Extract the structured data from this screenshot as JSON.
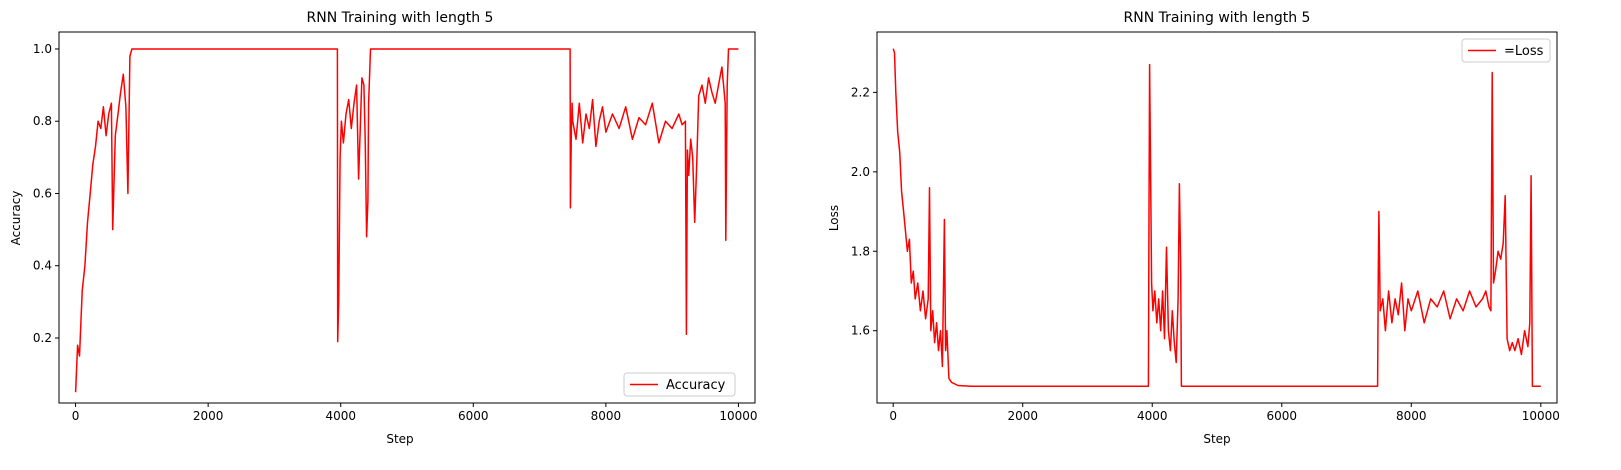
{
  "colors": {
    "series": "#ff0000",
    "axes": "#000000",
    "background": "#ffffff"
  },
  "chart_data": [
    {
      "type": "line",
      "title": "RNN Training with length 5",
      "xlabel": "Step",
      "ylabel": "Accuracy",
      "xlim": [
        -250,
        10250
      ],
      "ylim": [
        0.02,
        1.047
      ],
      "xticks": [
        0,
        2000,
        4000,
        6000,
        8000,
        10000
      ],
      "xtick_labels": [
        "0",
        "2000",
        "4000",
        "6000",
        "8000",
        "10000"
      ],
      "yticks": [
        0.2,
        0.4,
        0.6,
        0.8,
        1.0
      ],
      "ytick_labels": [
        "0.2",
        "0.4",
        "0.6",
        "0.8",
        "1.0"
      ],
      "grid": false,
      "legend": {
        "location": "lower right",
        "entries": [
          "Accuracy"
        ]
      },
      "series": [
        {
          "name": "Accuracy",
          "color": "#ff0000",
          "x": [
            0,
            30,
            60,
            100,
            140,
            180,
            220,
            260,
            300,
            340,
            380,
            420,
            460,
            500,
            540,
            560,
            600,
            640,
            680,
            720,
            760,
            790,
            820,
            850,
            900,
            1000,
            2000,
            3000,
            3950,
            3955,
            3970,
            3990,
            4010,
            4040,
            4080,
            4120,
            4160,
            4200,
            4240,
            4270,
            4290,
            4320,
            4350,
            4370,
            4390,
            4410,
            4420,
            4440,
            4450,
            4500,
            5000,
            6000,
            7000,
            7460,
            7465,
            7480,
            7490,
            7500,
            7550,
            7600,
            7650,
            7700,
            7750,
            7800,
            7850,
            7900,
            7950,
            8000,
            8100,
            8200,
            8300,
            8400,
            8500,
            8600,
            8700,
            8800,
            8900,
            9000,
            9100,
            9150,
            9200,
            9215,
            9230,
            9250,
            9280,
            9310,
            9340,
            9370,
            9400,
            9450,
            9500,
            9550,
            9600,
            9650,
            9700,
            9750,
            9800,
            9810,
            9830,
            9850,
            9900,
            9950,
            10000
          ],
          "y": [
            0.05,
            0.18,
            0.15,
            0.33,
            0.4,
            0.52,
            0.6,
            0.68,
            0.73,
            0.8,
            0.78,
            0.84,
            0.76,
            0.82,
            0.85,
            0.5,
            0.76,
            0.82,
            0.88,
            0.93,
            0.84,
            0.6,
            0.98,
            1.0,
            1.0,
            1.0,
            1.0,
            1.0,
            1.0,
            0.19,
            0.3,
            0.7,
            0.8,
            0.74,
            0.82,
            0.86,
            0.78,
            0.85,
            0.9,
            0.64,
            0.75,
            0.92,
            0.9,
            0.75,
            0.48,
            0.58,
            0.85,
            0.95,
            1.0,
            1.0,
            1.0,
            1.0,
            1.0,
            1.0,
            0.56,
            0.78,
            0.85,
            0.8,
            0.75,
            0.85,
            0.74,
            0.82,
            0.78,
            0.86,
            0.73,
            0.8,
            0.84,
            0.77,
            0.82,
            0.78,
            0.84,
            0.75,
            0.81,
            0.79,
            0.85,
            0.74,
            0.8,
            0.78,
            0.82,
            0.79,
            0.8,
            0.21,
            0.72,
            0.65,
            0.75,
            0.7,
            0.52,
            0.68,
            0.87,
            0.9,
            0.85,
            0.92,
            0.88,
            0.85,
            0.9,
            0.95,
            0.85,
            0.47,
            0.9,
            1.0,
            1.0,
            1.0,
            1.0
          ]
        }
      ]
    },
    {
      "type": "line",
      "title": "RNN Training with length 5",
      "xlabel": "Step",
      "ylabel": "Loss",
      "xlim": [
        -250,
        10250
      ],
      "ylim": [
        1.418,
        2.352
      ],
      "xticks": [
        0,
        2000,
        4000,
        6000,
        8000,
        10000
      ],
      "xtick_labels": [
        "0",
        "2000",
        "4000",
        "6000",
        "8000",
        "10000"
      ],
      "yticks": [
        1.6,
        1.8,
        2.0,
        2.2
      ],
      "ytick_labels": [
        "1.6",
        "1.8",
        "2.0",
        "2.2"
      ],
      "grid": false,
      "legend": {
        "location": "upper right",
        "entries": [
          "=Loss"
        ]
      },
      "series": [
        {
          "name": "=Loss",
          "color": "#ff0000",
          "x": [
            0,
            20,
            40,
            70,
            100,
            130,
            160,
            190,
            220,
            250,
            280,
            310,
            340,
            380,
            420,
            460,
            500,
            540,
            560,
            580,
            610,
            640,
            670,
            700,
            730,
            760,
            790,
            810,
            830,
            860,
            900,
            1000,
            1200,
            1500,
            2000,
            3000,
            3900,
            3940,
            3950,
            3960,
            3975,
            3990,
            4010,
            4040,
            4070,
            4100,
            4130,
            4160,
            4190,
            4220,
            4250,
            4280,
            4310,
            4340,
            4370,
            4400,
            4420,
            4440,
            4450,
            5000,
            6000,
            7000,
            7480,
            7490,
            7500,
            7520,
            7560,
            7600,
            7650,
            7700,
            7750,
            7800,
            7850,
            7900,
            7950,
            8000,
            8100,
            8200,
            8300,
            8400,
            8500,
            8600,
            8700,
            8800,
            8900,
            9000,
            9100,
            9150,
            9200,
            9230,
            9250,
            9270,
            9300,
            9340,
            9380,
            9420,
            9450,
            9480,
            9520,
            9560,
            9600,
            9650,
            9700,
            9750,
            9800,
            9830,
            9850,
            9870,
            9900,
            9950,
            10000
          ],
          "y": [
            2.31,
            2.3,
            2.2,
            2.1,
            2.05,
            1.95,
            1.9,
            1.85,
            1.8,
            1.83,
            1.72,
            1.75,
            1.68,
            1.72,
            1.65,
            1.7,
            1.63,
            1.68,
            1.96,
            1.6,
            1.65,
            1.57,
            1.62,
            1.55,
            1.6,
            1.51,
            1.88,
            1.55,
            1.6,
            1.48,
            1.47,
            1.462,
            1.46,
            1.46,
            1.46,
            1.46,
            1.46,
            1.46,
            1.9,
            2.27,
            2.0,
            1.72,
            1.65,
            1.7,
            1.62,
            1.68,
            1.6,
            1.7,
            1.58,
            1.81,
            1.6,
            1.55,
            1.65,
            1.57,
            1.52,
            1.68,
            1.97,
            1.75,
            1.46,
            1.46,
            1.46,
            1.46,
            1.46,
            1.75,
            1.9,
            1.65,
            1.68,
            1.6,
            1.7,
            1.62,
            1.68,
            1.64,
            1.72,
            1.6,
            1.68,
            1.65,
            1.7,
            1.62,
            1.68,
            1.66,
            1.7,
            1.63,
            1.68,
            1.65,
            1.7,
            1.66,
            1.68,
            1.7,
            1.66,
            1.65,
            2.25,
            1.72,
            1.75,
            1.8,
            1.78,
            1.82,
            1.94,
            1.58,
            1.55,
            1.57,
            1.55,
            1.58,
            1.54,
            1.6,
            1.56,
            1.62,
            1.99,
            1.46,
            1.46,
            1.46,
            1.46
          ]
        }
      ]
    }
  ]
}
